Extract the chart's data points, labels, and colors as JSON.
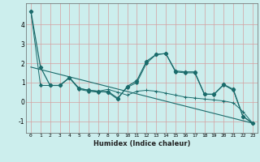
{
  "xlabel": "Humidex (Indice chaleur)",
  "bg_color": "#cceeed",
  "grid_color": "#d4a0a0",
  "line_color": "#1a6b6b",
  "xlim": [
    -0.5,
    23.5
  ],
  "ylim": [
    -1.6,
    5.1
  ],
  "yticks": [
    -1,
    0,
    1,
    2,
    3,
    4
  ],
  "xticks": [
    0,
    1,
    2,
    3,
    4,
    5,
    6,
    7,
    8,
    9,
    10,
    11,
    12,
    13,
    14,
    15,
    16,
    17,
    18,
    19,
    20,
    21,
    22,
    23
  ],
  "line1_x": [
    0,
    1,
    2,
    3,
    4,
    5,
    6,
    7,
    8,
    9,
    10,
    11,
    12,
    13,
    14,
    15,
    16,
    17,
    18,
    19,
    20,
    21,
    22,
    23
  ],
  "line1_y": [
    4.7,
    1.8,
    0.85,
    0.85,
    1.25,
    0.7,
    0.6,
    0.55,
    0.5,
    0.15,
    0.8,
    1.1,
    2.1,
    2.45,
    2.5,
    1.6,
    1.55,
    1.55,
    0.4,
    0.4,
    0.9,
    0.65,
    -0.75,
    -1.1
  ],
  "line2_x": [
    1,
    2,
    3,
    4,
    5,
    6,
    7,
    8,
    9,
    10,
    11,
    12,
    13,
    14,
    15,
    16,
    17,
    18,
    19,
    20,
    21,
    22,
    23
  ],
  "line2_y": [
    0.85,
    0.85,
    0.85,
    1.25,
    0.7,
    0.6,
    0.55,
    0.65,
    0.5,
    0.35,
    0.55,
    0.6,
    0.55,
    0.45,
    0.35,
    0.25,
    0.2,
    0.15,
    0.1,
    0.05,
    -0.05,
    -0.5,
    -1.1
  ],
  "line3_x": [
    0,
    1,
    2,
    3,
    4,
    5,
    6,
    7,
    8,
    9,
    10,
    11,
    12,
    13,
    14,
    15,
    16,
    17,
    18,
    19,
    20,
    21,
    22,
    23
  ],
  "line3_y": [
    4.7,
    0.85,
    0.85,
    0.85,
    1.25,
    0.65,
    0.55,
    0.5,
    0.55,
    0.2,
    0.75,
    1.0,
    2.0,
    2.45,
    2.5,
    1.55,
    1.5,
    1.5,
    0.4,
    0.38,
    0.88,
    0.6,
    -0.75,
    -1.1
  ],
  "line4_x": [
    0,
    23
  ],
  "line4_y": [
    1.8,
    -1.1
  ]
}
